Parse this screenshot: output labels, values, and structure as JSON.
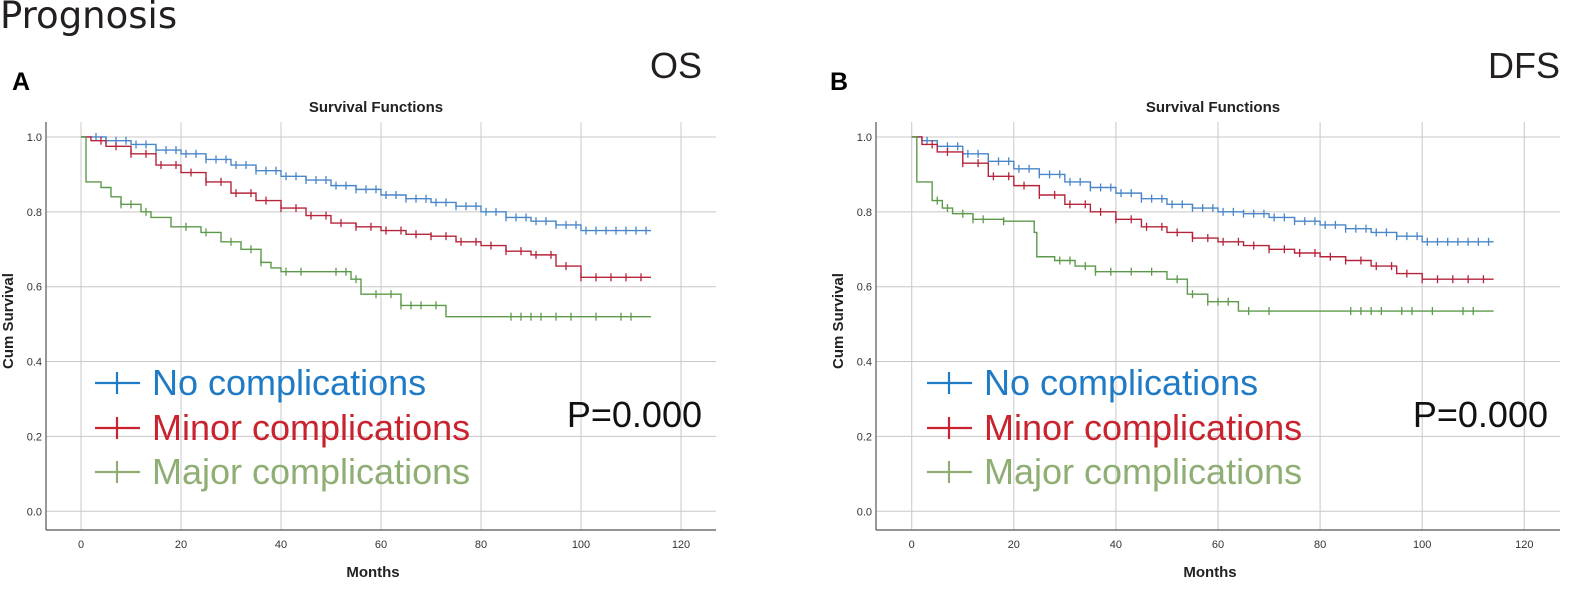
{
  "page_title": "Prognosis",
  "colors": {
    "no": "#4a86c8",
    "minor": "#b5243a",
    "major": "#5c9a4a",
    "legend_no": "#1f7bc6",
    "legend_minor": "#c8232f",
    "legend_major": "#8fae74",
    "grid": "#c8c8c8",
    "axis": "#555555"
  },
  "chart_data": [
    {
      "type": "line",
      "panel_label": "A",
      "corner_label": "OS",
      "title": "Survival Functions",
      "xlabel": "Months",
      "ylabel": "Cum Survival",
      "xlim": [
        -7,
        127
      ],
      "ylim": [
        -0.05,
        1.04
      ],
      "xticks": [
        0,
        20,
        40,
        60,
        80,
        100,
        120
      ],
      "xtick_labels": [
        "0",
        "20",
        "40",
        "60",
        "80",
        "100",
        "120"
      ],
      "yticks": [
        0.0,
        0.2,
        0.4,
        0.6,
        0.8,
        1.0
      ],
      "ytick_labels": [
        "0.0",
        "0.2",
        "0.4",
        "0.6",
        "0.8",
        "1.0"
      ],
      "pvalue": "P=0.000",
      "legend": [
        "No complications",
        "Minor complications",
        "Major complications"
      ],
      "series": [
        {
          "name": "No complications",
          "color_key": "no",
          "steps": [
            [
              0,
              1.0
            ],
            [
              2,
              1.0
            ],
            [
              5,
              0.99
            ],
            [
              10,
              0.98
            ],
            [
              15,
              0.965
            ],
            [
              20,
              0.955
            ],
            [
              25,
              0.94
            ],
            [
              30,
              0.925
            ],
            [
              35,
              0.91
            ],
            [
              40,
              0.895
            ],
            [
              45,
              0.885
            ],
            [
              50,
              0.87
            ],
            [
              55,
              0.86
            ],
            [
              60,
              0.845
            ],
            [
              65,
              0.835
            ],
            [
              70,
              0.825
            ],
            [
              75,
              0.815
            ],
            [
              80,
              0.8
            ],
            [
              85,
              0.785
            ],
            [
              90,
              0.775
            ],
            [
              95,
              0.765
            ],
            [
              100,
              0.75
            ],
            [
              114,
              0.75
            ]
          ],
          "censors": [
            3,
            5,
            7,
            9,
            11,
            13,
            15,
            17,
            19,
            21,
            23,
            25,
            27,
            29,
            31,
            33,
            35,
            37,
            39,
            41,
            43,
            45,
            47,
            49,
            51,
            53,
            55,
            57,
            59,
            61,
            63,
            65,
            67,
            69,
            71,
            73,
            75,
            77,
            79,
            81,
            83,
            85,
            87,
            89,
            91,
            93,
            95,
            97,
            99,
            101,
            103,
            105,
            107,
            109,
            111,
            113
          ]
        },
        {
          "name": "Minor complications",
          "color_key": "minor",
          "steps": [
            [
              0,
              1.0
            ],
            [
              2,
              0.99
            ],
            [
              5,
              0.975
            ],
            [
              10,
              0.955
            ],
            [
              15,
              0.925
            ],
            [
              20,
              0.905
            ],
            [
              25,
              0.88
            ],
            [
              30,
              0.85
            ],
            [
              35,
              0.83
            ],
            [
              40,
              0.81
            ],
            [
              45,
              0.79
            ],
            [
              50,
              0.77
            ],
            [
              55,
              0.76
            ],
            [
              60,
              0.75
            ],
            [
              65,
              0.74
            ],
            [
              70,
              0.735
            ],
            [
              75,
              0.72
            ],
            [
              80,
              0.71
            ],
            [
              85,
              0.695
            ],
            [
              90,
              0.685
            ],
            [
              95,
              0.655
            ],
            [
              100,
              0.625
            ],
            [
              114,
              0.625
            ]
          ],
          "censors": [
            4,
            7,
            10,
            13,
            16,
            19,
            22,
            25,
            28,
            31,
            34,
            37,
            40,
            43,
            46,
            49,
            52,
            55,
            58,
            61,
            64,
            67,
            70,
            73,
            76,
            79,
            82,
            85,
            88,
            91,
            94,
            97,
            100,
            103,
            106,
            109,
            112
          ]
        },
        {
          "name": "Major complications",
          "color_key": "major",
          "steps": [
            [
              0,
              1.0
            ],
            [
              1,
              0.88
            ],
            [
              4,
              0.865
            ],
            [
              6,
              0.84
            ],
            [
              8,
              0.82
            ],
            [
              12,
              0.8
            ],
            [
              14,
              0.785
            ],
            [
              18,
              0.76
            ],
            [
              24,
              0.745
            ],
            [
              28,
              0.72
            ],
            [
              32,
              0.7
            ],
            [
              36,
              0.665
            ],
            [
              38,
              0.65
            ],
            [
              40,
              0.64
            ],
            [
              54,
              0.62
            ],
            [
              56,
              0.58
            ],
            [
              64,
              0.55
            ],
            [
              73,
              0.52
            ],
            [
              114,
              0.52
            ]
          ],
          "censors": [
            8,
            10,
            13,
            21,
            25,
            30,
            34,
            36,
            41,
            44,
            51,
            53,
            55,
            59,
            62,
            64,
            66,
            68,
            71,
            86,
            88,
            90,
            92,
            95,
            98,
            103,
            108,
            110
          ]
        }
      ]
    },
    {
      "type": "line",
      "panel_label": "B",
      "corner_label": "DFS",
      "title": "Survival Functions",
      "xlabel": "Months",
      "ylabel": "Cum Survival",
      "xlim": [
        -7,
        127
      ],
      "ylim": [
        -0.05,
        1.04
      ],
      "xticks": [
        0,
        20,
        40,
        60,
        80,
        100,
        120
      ],
      "xtick_labels": [
        "0",
        "20",
        "40",
        "60",
        "80",
        "100",
        "120"
      ],
      "yticks": [
        0.0,
        0.2,
        0.4,
        0.6,
        0.8,
        1.0
      ],
      "ytick_labels": [
        "0.0",
        "0.2",
        "0.4",
        "0.6",
        "0.8",
        "1.0"
      ],
      "pvalue": "P=0.000",
      "legend": [
        "No complications",
        "Minor complications",
        "Major complications"
      ],
      "series": [
        {
          "name": "No complications",
          "color_key": "no",
          "steps": [
            [
              0,
              1.0
            ],
            [
              2,
              0.99
            ],
            [
              5,
              0.975
            ],
            [
              10,
              0.955
            ],
            [
              15,
              0.935
            ],
            [
              20,
              0.915
            ],
            [
              25,
              0.9
            ],
            [
              30,
              0.88
            ],
            [
              35,
              0.865
            ],
            [
              40,
              0.85
            ],
            [
              45,
              0.835
            ],
            [
              50,
              0.82
            ],
            [
              55,
              0.81
            ],
            [
              60,
              0.8
            ],
            [
              65,
              0.795
            ],
            [
              70,
              0.785
            ],
            [
              75,
              0.775
            ],
            [
              80,
              0.765
            ],
            [
              85,
              0.755
            ],
            [
              90,
              0.745
            ],
            [
              95,
              0.735
            ],
            [
              100,
              0.72
            ],
            [
              114,
              0.72
            ]
          ],
          "censors": [
            3,
            5,
            7,
            9,
            11,
            13,
            15,
            17,
            19,
            21,
            23,
            25,
            27,
            29,
            31,
            33,
            35,
            37,
            39,
            41,
            43,
            45,
            47,
            49,
            51,
            53,
            55,
            57,
            59,
            61,
            63,
            65,
            67,
            69,
            71,
            73,
            75,
            77,
            79,
            81,
            83,
            85,
            87,
            89,
            91,
            93,
            95,
            97,
            99,
            101,
            103,
            105,
            107,
            109,
            111,
            113
          ]
        },
        {
          "name": "Minor complications",
          "color_key": "minor",
          "steps": [
            [
              0,
              1.0
            ],
            [
              2,
              0.98
            ],
            [
              5,
              0.96
            ],
            [
              10,
              0.93
            ],
            [
              15,
              0.895
            ],
            [
              20,
              0.87
            ],
            [
              25,
              0.845
            ],
            [
              30,
              0.82
            ],
            [
              35,
              0.8
            ],
            [
              40,
              0.78
            ],
            [
              45,
              0.76
            ],
            [
              50,
              0.745
            ],
            [
              55,
              0.73
            ],
            [
              60,
              0.72
            ],
            [
              65,
              0.71
            ],
            [
              70,
              0.7
            ],
            [
              75,
              0.69
            ],
            [
              80,
              0.68
            ],
            [
              85,
              0.67
            ],
            [
              90,
              0.655
            ],
            [
              95,
              0.635
            ],
            [
              100,
              0.62
            ],
            [
              114,
              0.62
            ]
          ],
          "censors": [
            4,
            7,
            10,
            13,
            16,
            19,
            22,
            25,
            28,
            31,
            34,
            37,
            40,
            43,
            46,
            49,
            52,
            55,
            58,
            61,
            64,
            67,
            70,
            73,
            76,
            79,
            82,
            85,
            88,
            91,
            94,
            97,
            100,
            103,
            106,
            109,
            112
          ]
        },
        {
          "name": "Major complications",
          "color_key": "major",
          "steps": [
            [
              0,
              1.0
            ],
            [
              1,
              0.88
            ],
            [
              4,
              0.83
            ],
            [
              6,
              0.81
            ],
            [
              8,
              0.795
            ],
            [
              12,
              0.78
            ],
            [
              18,
              0.775
            ],
            [
              24,
              0.745
            ],
            [
              24.5,
              0.68
            ],
            [
              28,
              0.67
            ],
            [
              32,
              0.655
            ],
            [
              36,
              0.64
            ],
            [
              50,
              0.62
            ],
            [
              54,
              0.58
            ],
            [
              58,
              0.56
            ],
            [
              64,
              0.535
            ],
            [
              114,
              0.535
            ]
          ],
          "censors": [
            5,
            7,
            10,
            12,
            14,
            18,
            29,
            31,
            34,
            36,
            39,
            43,
            47,
            52,
            55,
            58,
            60,
            62,
            66,
            70,
            86,
            88,
            90,
            92,
            96,
            98,
            102,
            108,
            110
          ]
        }
      ]
    }
  ]
}
